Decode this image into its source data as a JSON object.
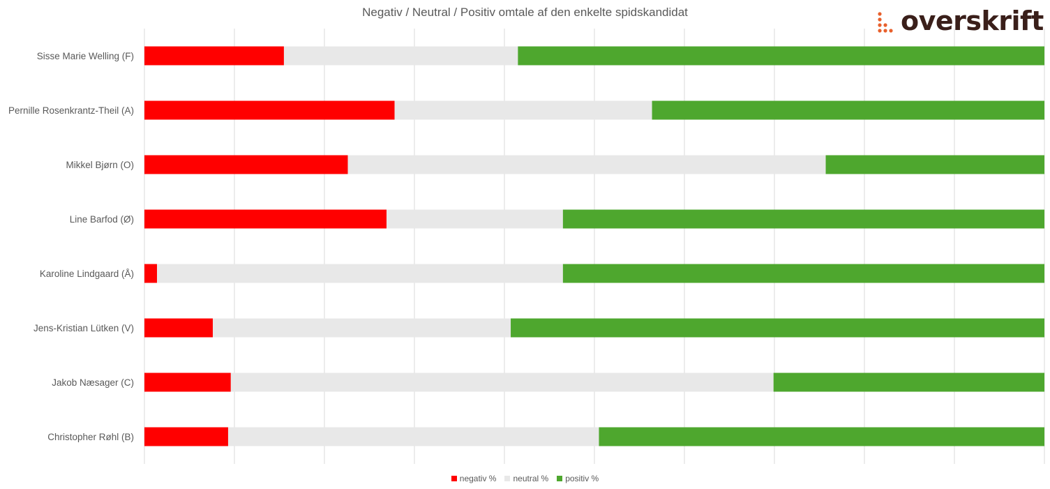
{
  "brand": {
    "logo_text": "overskrift"
  },
  "chart_data": {
    "type": "bar",
    "orientation": "horizontal",
    "stacked": "percent",
    "title": "Negativ / Neutral / Positiv omtale af den enkelte spidskandidat",
    "categories": [
      "Sisse Marie Welling (F)",
      "Pernille Rosenkrantz-Theil (A)",
      "Mikkel Bjørn (O)",
      "Line Barfod (Ø)",
      "Karoline Lindgaard (Å)",
      "Jens-Kristian Lütken (V)",
      "Jakob Næsager (C)",
      "Christopher Røhl (B)"
    ],
    "series": [
      {
        "name": "negativ %",
        "color": "#ff0000",
        "values": [
          15.5,
          27.8,
          22.6,
          26.9,
          1.4,
          7.6,
          9.6,
          9.3
        ]
      },
      {
        "name": "neutral %",
        "color": "#e8e8e8",
        "values": [
          26.0,
          28.6,
          53.1,
          19.6,
          45.1,
          33.1,
          60.3,
          41.2
        ]
      },
      {
        "name": "positiv %",
        "color": "#4ea72e",
        "values": [
          58.5,
          43.6,
          24.3,
          53.5,
          53.5,
          59.3,
          30.1,
          49.5
        ]
      }
    ],
    "xlim": [
      0,
      100
    ],
    "grid": true,
    "legend": "bottom"
  }
}
